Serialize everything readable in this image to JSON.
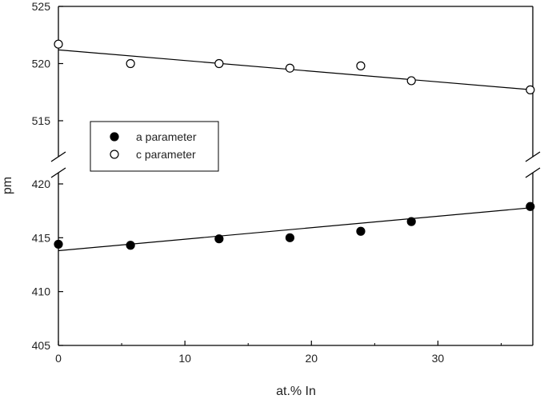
{
  "chart_data": {
    "type": "scatter",
    "title": "",
    "xlabel": "at.% In",
    "ylabel": "pm",
    "xlim": [
      0,
      37.5
    ],
    "x_ticks": [
      0,
      10,
      20,
      30
    ],
    "y_axis_break": true,
    "y_segments": [
      {
        "range": [
          515,
          525
        ],
        "ticks": [
          515,
          520,
          525
        ]
      },
      {
        "range": [
          405,
          420
        ],
        "ticks": [
          405,
          410,
          415,
          420
        ]
      }
    ],
    "legend_position": "left-middle",
    "series": [
      {
        "name": "a parameter",
        "marker": "filled-circle",
        "color": "#000000",
        "x": [
          0,
          5.7,
          12.7,
          18.3,
          23.9,
          27.9,
          37.3
        ],
        "y": [
          414.4,
          414.3,
          414.9,
          415.0,
          415.6,
          416.5,
          417.9
        ],
        "fit": {
          "x": [
            0,
            37.5
          ],
          "y": [
            413.8,
            417.8
          ]
        }
      },
      {
        "name": "c parameter",
        "marker": "open-circle",
        "color": "#000000",
        "x": [
          0,
          5.7,
          12.7,
          18.3,
          23.9,
          27.9,
          37.3
        ],
        "y": [
          521.7,
          520.0,
          520.0,
          519.6,
          519.8,
          518.5,
          517.7
        ],
        "fit": {
          "x": [
            0,
            37.5
          ],
          "y": [
            521.2,
            517.7
          ]
        }
      }
    ]
  }
}
